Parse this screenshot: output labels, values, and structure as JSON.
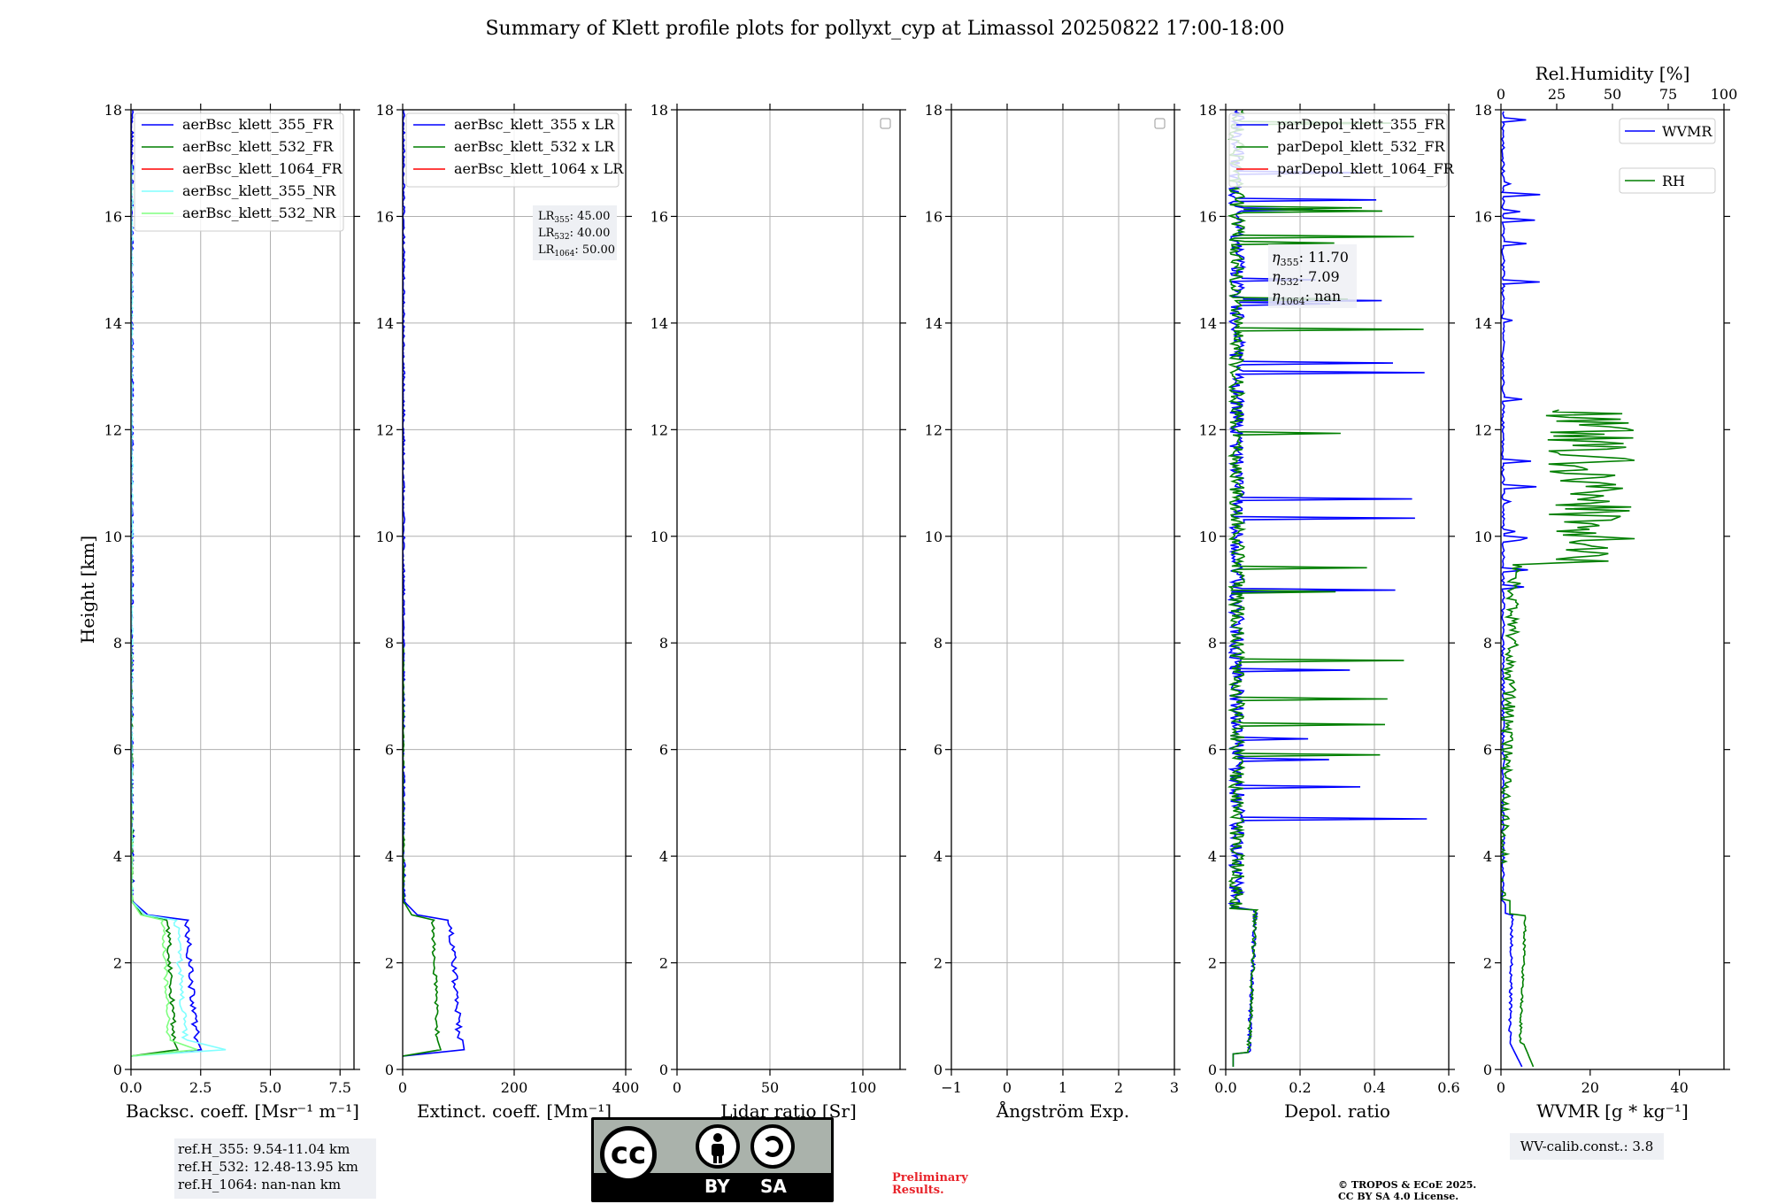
{
  "title": "Summary of Klett profile plots for pollyxt_cyp at Limassol 20250822 17:00-18:00",
  "colors": {
    "c355": "#0000ff",
    "c532": "#007f00",
    "c1064": "#ff0000",
    "c355nr": "#80ffff",
    "c532nr": "#80ff80",
    "grid": "#b0b0b0"
  },
  "chart_data": [
    {
      "type": "line",
      "id": "bsc",
      "xlabel": "Backsc. coeff. [Msr⁻¹ m⁻¹]",
      "ylabel": "Height [km]",
      "xlim": [
        0,
        8
      ],
      "ylim": [
        0,
        18
      ],
      "xticks": [
        0,
        2.5,
        5,
        7.5
      ],
      "xticklabels": [
        "0.0",
        "2.5",
        "5.0",
        "7.5"
      ],
      "yticks": [
        0,
        2,
        4,
        6,
        8,
        10,
        12,
        14,
        16,
        18
      ],
      "grid": true,
      "legend_position": "top-left",
      "series": [
        {
          "name": "aerBsc_klett_355_FR",
          "color": "#0000ff",
          "shape": "bsc",
          "scale": 2.4,
          "top": 18
        },
        {
          "name": "aerBsc_klett_532_FR",
          "color": "#007f00",
          "shape": "bsc",
          "scale": 1.6,
          "top": 8
        },
        {
          "name": "aerBsc_klett_1064_FR",
          "color": "#ff0000",
          "shape": "none"
        },
        {
          "name": "aerBsc_klett_355_NR",
          "color": "#80ffff",
          "shape": "bscnr",
          "scale": 2.0,
          "top": 17
        },
        {
          "name": "aerBsc_klett_532_NR",
          "color": "#80ff80",
          "shape": "bscnr",
          "scale": 1.4,
          "top": 5
        }
      ],
      "notes": [
        "ref.H_355: 9.54-11.04 km",
        "ref.H_532: 12.48-13.95 km",
        "ref.H_1064: nan-nan km"
      ]
    },
    {
      "type": "line",
      "id": "ext",
      "xlabel": "Extinct. coeff. [Mm⁻¹]",
      "xlim": [
        0,
        400
      ],
      "ylim": [
        0,
        18
      ],
      "xticks": [
        0,
        200,
        400
      ],
      "xticklabels": [
        "0",
        "200",
        "400"
      ],
      "yticks": [
        0,
        2,
        4,
        6,
        8,
        10,
        12,
        14,
        16,
        18
      ],
      "grid": true,
      "legend_position": "top-left",
      "series": [
        {
          "name": "aerBsc_klett_355 x LR",
          "color": "#0000ff",
          "shape": "ext",
          "scale": 105,
          "top": 18
        },
        {
          "name": "aerBsc_klett_532 x LR",
          "color": "#007f00",
          "shape": "ext",
          "scale": 65,
          "top": 8
        },
        {
          "name": "aerBsc_klett_1064 x LR",
          "color": "#ff0000",
          "shape": "none"
        }
      ],
      "lr_values": [
        {
          "sub": "355",
          "value": "45.00"
        },
        {
          "sub": "532",
          "value": "40.00"
        },
        {
          "sub": "1064",
          "value": "50.00"
        }
      ]
    },
    {
      "type": "line",
      "id": "lr",
      "xlabel": "Lidar ratio [Sr]",
      "xlim": [
        0,
        120
      ],
      "ylim": [
        0,
        18
      ],
      "xticks": [
        0,
        50,
        100
      ],
      "xticklabels": [
        "0",
        "50",
        "100"
      ],
      "yticks": [
        0,
        2,
        4,
        6,
        8,
        10,
        12,
        14,
        16,
        18
      ],
      "grid": true,
      "legend_position": "top-right",
      "series": []
    },
    {
      "type": "line",
      "id": "ang",
      "xlabel": "Ångström Exp.",
      "xlim": [
        -1,
        3
      ],
      "ylim": [
        0,
        18
      ],
      "xticks": [
        -1,
        0,
        1,
        2,
        3
      ],
      "xticklabels": [
        "−1",
        "0",
        "1",
        "2",
        "3"
      ],
      "yticks": [
        0,
        2,
        4,
        6,
        8,
        10,
        12,
        14,
        16,
        18
      ],
      "grid": true,
      "legend_position": "top-right",
      "series": []
    },
    {
      "type": "line",
      "id": "dep",
      "xlabel": "Depol. ratio",
      "xlim": [
        0,
        0.6
      ],
      "ylim": [
        0,
        18
      ],
      "xticks": [
        0,
        0.2,
        0.4,
        0.6
      ],
      "xticklabels": [
        "0.0",
        "0.2",
        "0.4",
        "0.6"
      ],
      "yticks": [
        0,
        2,
        4,
        6,
        8,
        10,
        12,
        14,
        16,
        18
      ],
      "grid": true,
      "legend_position": "top-left",
      "series": [
        {
          "name": "parDepol_klett_355_FR",
          "color": "#0000ff",
          "shape": "dep"
        },
        {
          "name": "parDepol_klett_532_FR",
          "color": "#007f00",
          "shape": "dep"
        },
        {
          "name": "parDepol_klett_1064_FR",
          "color": "#ff0000",
          "shape": "none"
        }
      ],
      "eta_values": [
        {
          "sub": "355",
          "value": "11.70"
        },
        {
          "sub": "532",
          "value": "7.09"
        },
        {
          "sub": "1064",
          "value": "nan"
        }
      ]
    },
    {
      "type": "line",
      "id": "wv",
      "xlabel": "WVMR [g * kg⁻¹]",
      "top_xlabel": "Rel.Humidity [%]",
      "xlim": [
        0,
        50
      ],
      "ylim": [
        0,
        18
      ],
      "xticks": [
        0,
        20,
        40
      ],
      "xticklabels": [
        "0",
        "20",
        "40"
      ],
      "top_xlim": [
        0,
        100
      ],
      "top_xticks": [
        0,
        25,
        50,
        75,
        100
      ],
      "top_xticklabels": [
        "0",
        "25",
        "50",
        "75",
        "100"
      ],
      "yticks": [
        0,
        2,
        4,
        6,
        8,
        10,
        12,
        14,
        16,
        18
      ],
      "grid": false,
      "series": [
        {
          "name": "WVMR",
          "color": "#0000ff",
          "shape": "wv"
        },
        {
          "name": "RH",
          "color": "#007f00",
          "shape": "rh"
        }
      ],
      "notes": [
        "WV-calib.const.: 3.8"
      ]
    }
  ],
  "footer": {
    "badge_by": "BY",
    "badge_sa": "SA",
    "badge_cc": "cc",
    "preliminary_1": "Preliminary",
    "preliminary_2": "Results.",
    "copyright_1": "© TROPOS & ECoE 2025.",
    "copyright_2": "CC BY SA 4.0 License."
  }
}
